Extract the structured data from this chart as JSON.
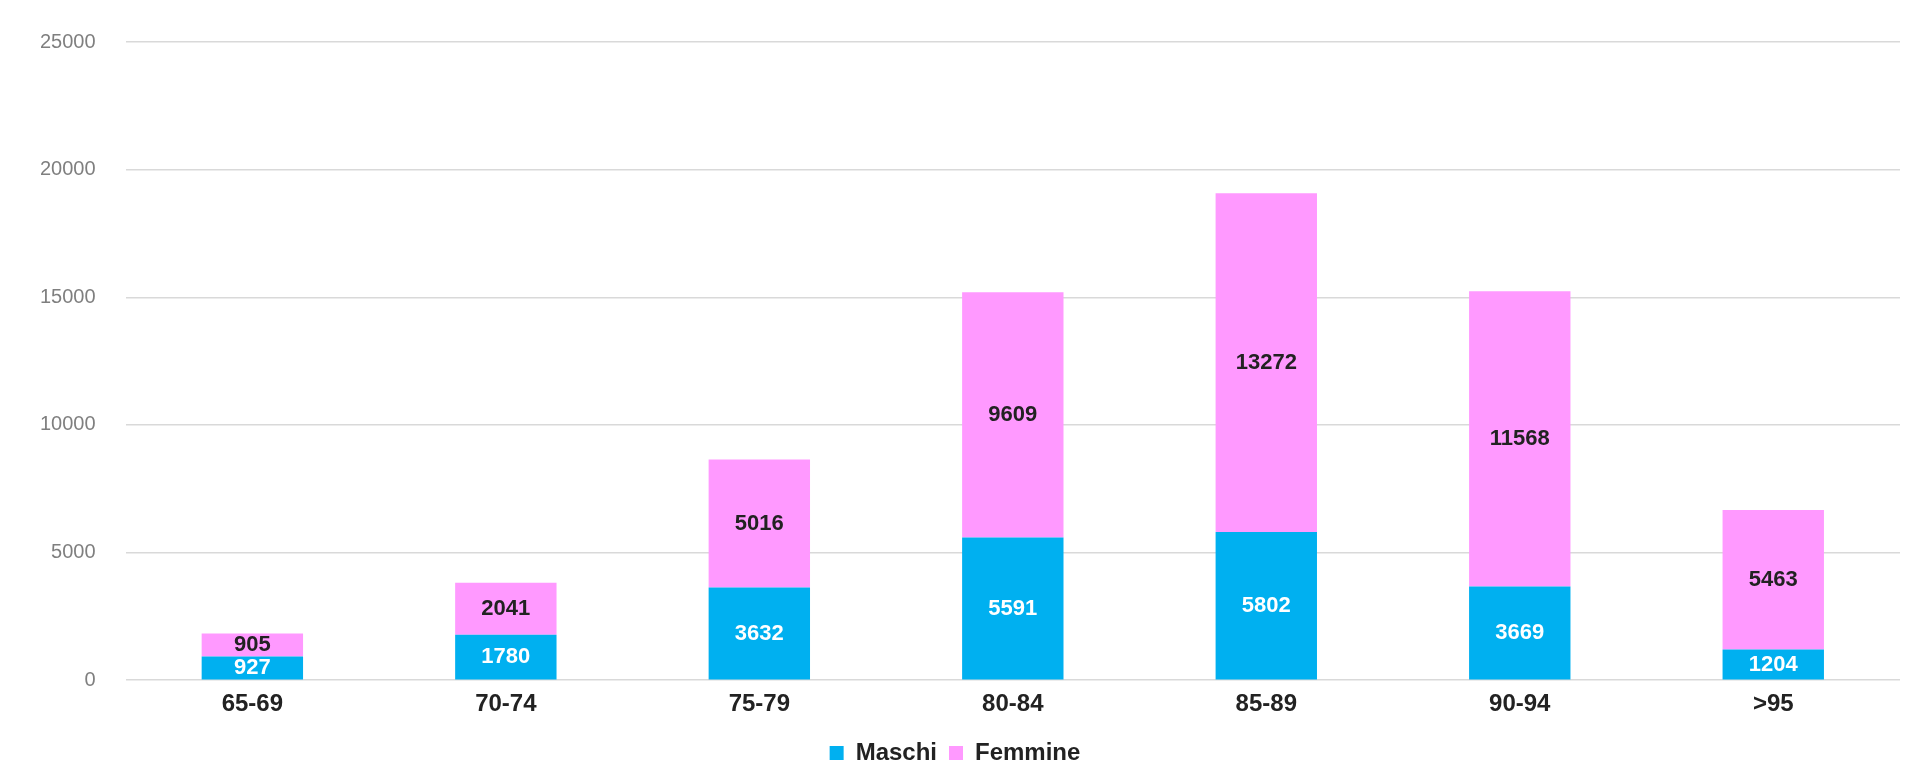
{
  "chart_data": {
    "type": "bar",
    "stacked": true,
    "categories": [
      "65-69",
      "70-74",
      "75-79",
      "80-84",
      "85-89",
      "90-94",
      ">95"
    ],
    "series": [
      {
        "name": "Maschi",
        "color": "#00b0f0",
        "values": [
          927,
          1780,
          3632,
          5591,
          5802,
          3669,
          1204
        ]
      },
      {
        "name": "Femmine",
        "color": "#ff99ff",
        "values": [
          905,
          2041,
          5016,
          9609,
          13272,
          11568,
          5463
        ]
      }
    ],
    "ylim": [
      0,
      25000
    ],
    "yticks": [
      0,
      5000,
      10000,
      15000,
      20000,
      25000
    ],
    "grid": "y",
    "legend": "bottom",
    "data_labels": true
  }
}
